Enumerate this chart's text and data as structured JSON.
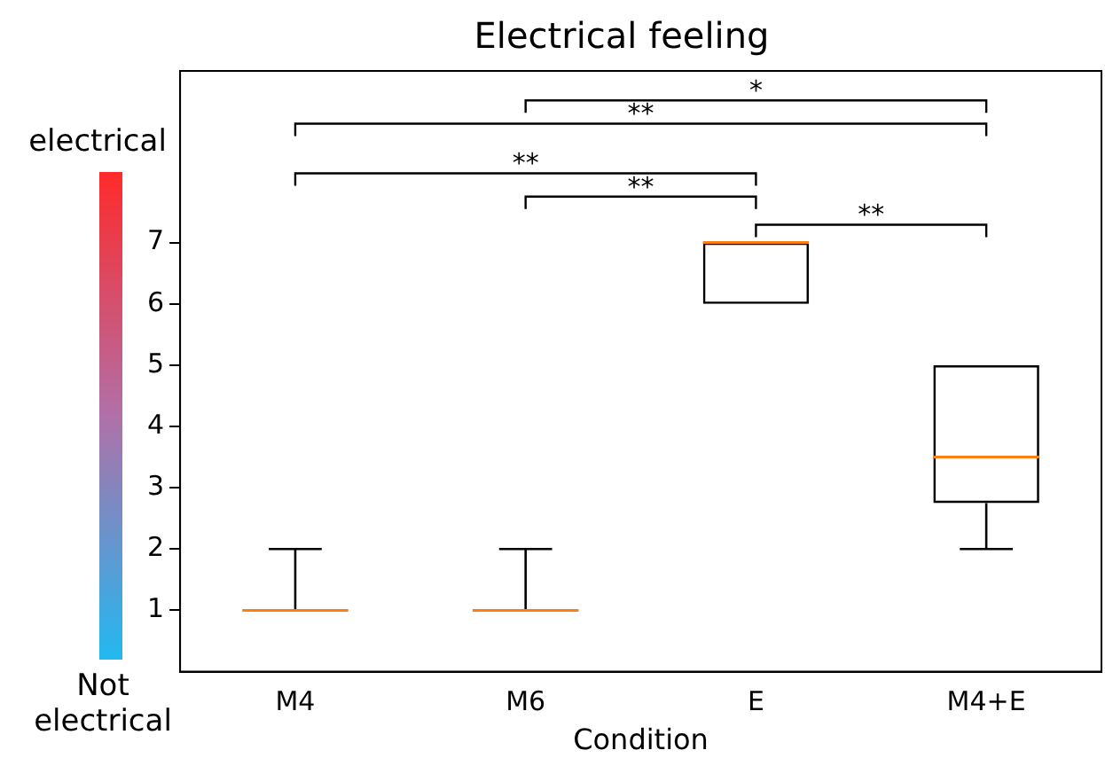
{
  "chart_data": {
    "type": "box",
    "title": "Electrical feeling",
    "xlabel": "Condition",
    "categories": [
      "M4",
      "M6",
      "E",
      "M4+E"
    ],
    "boxes": [
      {
        "low": 1,
        "q1": 1,
        "median": 1,
        "q3": 1,
        "high": 2
      },
      {
        "low": 1,
        "q1": 1,
        "median": 1,
        "q3": 1,
        "high": 2
      },
      {
        "low": 6,
        "q1": 6,
        "median": 7,
        "q3": 7,
        "high": 7
      },
      {
        "low": 2,
        "q1": 2.75,
        "median": 3.5,
        "q3": 5,
        "high": 5
      }
    ],
    "ylim": [
      0,
      9.8
    ],
    "yticks": [
      1,
      2,
      3,
      4,
      5,
      6,
      7
    ],
    "grid": false,
    "legend": false,
    "annotations": [
      "electrical",
      "Not electrical",
      "*",
      "**",
      "**",
      "**",
      "**"
    ]
  }
}
